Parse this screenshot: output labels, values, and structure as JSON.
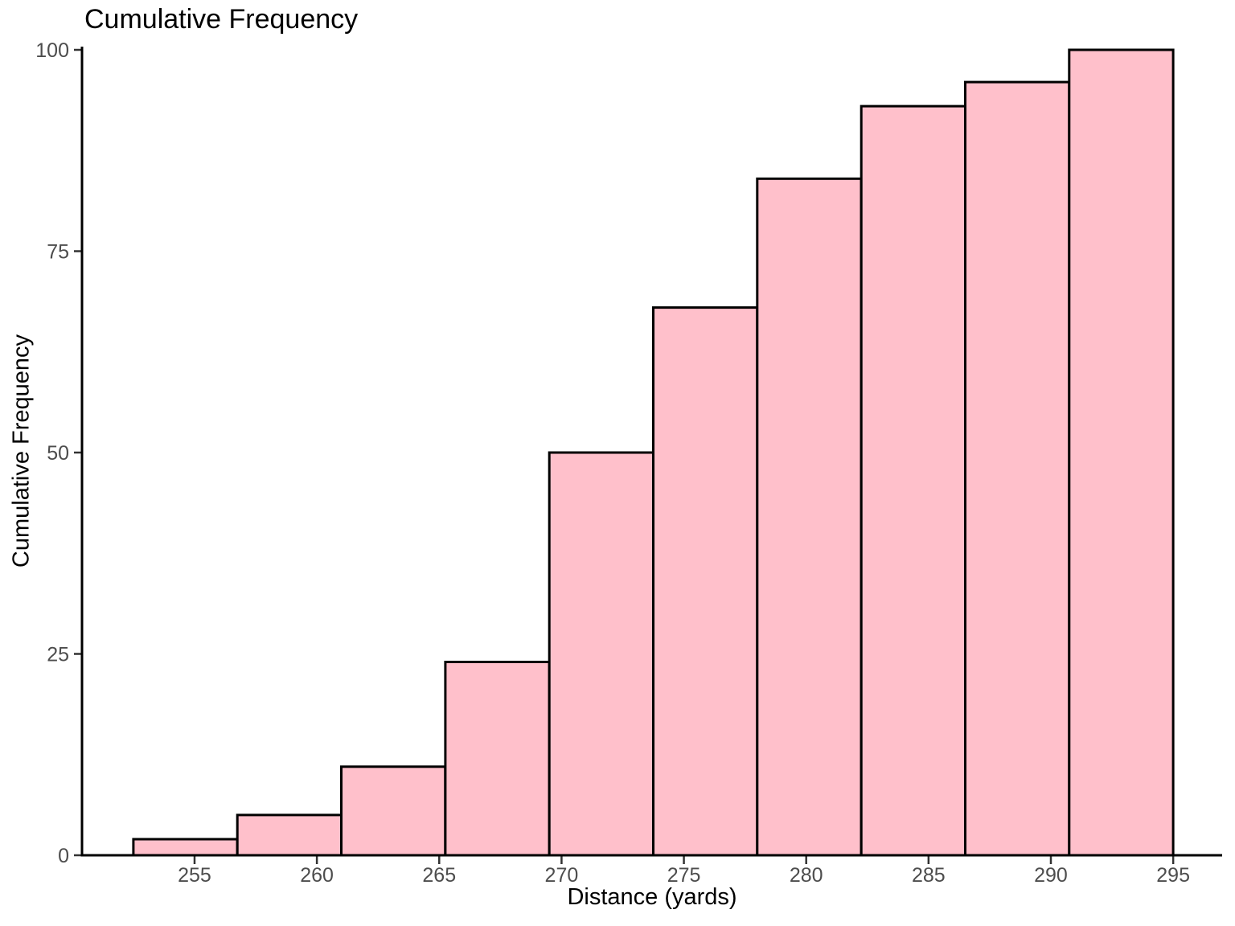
{
  "chart_data": {
    "type": "bar",
    "subtype": "cumulative-frequency-histogram",
    "title": "Cumulative Frequency",
    "xlabel": "Distance (yards)",
    "ylabel": "Cumulative Frequency",
    "bin_edges": [
      252.5,
      256.75,
      261.0,
      265.25,
      269.5,
      273.75,
      278.0,
      282.25,
      286.5,
      290.75,
      295.0
    ],
    "cumulative_values": [
      2,
      5,
      11,
      24,
      50,
      68,
      84,
      93,
      96,
      100
    ],
    "x_ticks": [
      255,
      260,
      265,
      270,
      275,
      280,
      285,
      290,
      295
    ],
    "y_ticks": [
      0,
      25,
      50,
      75,
      100
    ],
    "xlim": [
      250.4,
      297.0
    ],
    "ylim": [
      0,
      100.4
    ],
    "grid": false,
    "legend": false,
    "colors": {
      "background": "#ffffff",
      "bar_fill": "#FFC0CB",
      "bar_stroke": "#000000",
      "axis_line": "#000000",
      "tick_mark": "#333333",
      "tick_label": "#4d4d4d",
      "title_text": "#000000",
      "axis_label_text": "#000000"
    }
  }
}
